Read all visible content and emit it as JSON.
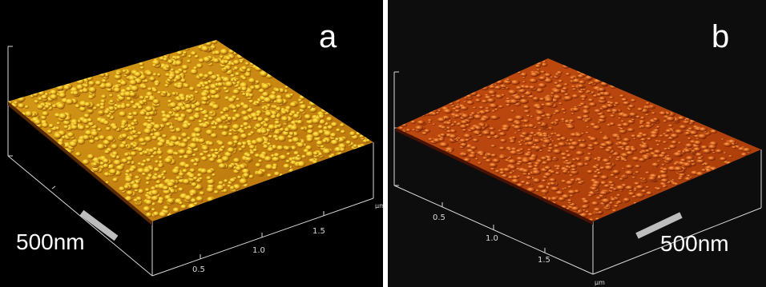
{
  "panels": [
    {
      "letter": "a",
      "scale_bar": "500nm",
      "axis_unit": "µm",
      "ticks": [
        "0.5",
        "1.0",
        "1.5"
      ],
      "colors": {
        "surface_light": "#f0c020",
        "surface_mid": "#d08a10",
        "surface_dark": "#6a3406"
      }
    },
    {
      "letter": "b",
      "scale_bar": "500nm",
      "axis_unit": "µm",
      "ticks": [
        "0.5",
        "1.0",
        "1.5"
      ],
      "colors": {
        "surface_light": "#f08a2a",
        "surface_mid": "#c8500e",
        "surface_dark": "#5a1804"
      }
    }
  ]
}
